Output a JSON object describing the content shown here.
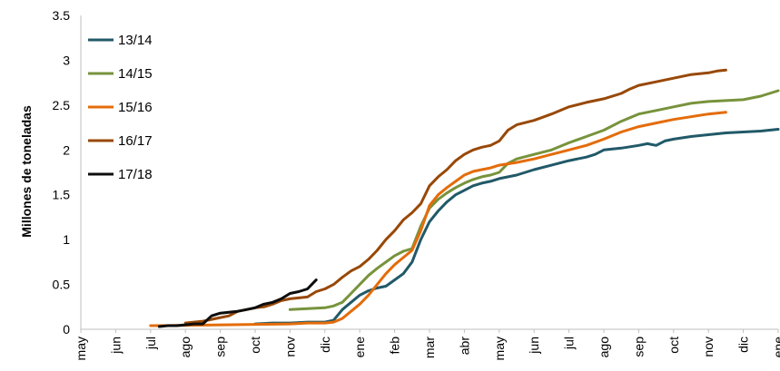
{
  "chart_data": {
    "type": "line",
    "title": "",
    "xlabel": "",
    "ylabel": "Millones de toneladas",
    "ylim": [
      0,
      3.5
    ],
    "yticks": [
      "0",
      "0.5",
      "1",
      "1.5",
      "2",
      "2.5",
      "3",
      "3.5"
    ],
    "categories": [
      "may",
      "jun",
      "jul",
      "ago",
      "sep",
      "oct",
      "nov",
      "dic",
      "ene",
      "feb",
      "mar",
      "abr",
      "may",
      "jun",
      "jul",
      "ago",
      "sep",
      "oct",
      "nov",
      "dic",
      "ene"
    ],
    "x_index_range": [
      0,
      20
    ],
    "grid": false,
    "legend_position": "top-left",
    "series": [
      {
        "name": "13/14",
        "color": "#215968",
        "points": [
          [
            5.0,
            0.06
          ],
          [
            5.5,
            0.07
          ],
          [
            6.0,
            0.07
          ],
          [
            6.5,
            0.08
          ],
          [
            7.0,
            0.08
          ],
          [
            7.25,
            0.1
          ],
          [
            7.5,
            0.22
          ],
          [
            7.75,
            0.3
          ],
          [
            8.0,
            0.38
          ],
          [
            8.25,
            0.43
          ],
          [
            8.5,
            0.46
          ],
          [
            8.75,
            0.48
          ],
          [
            9.0,
            0.55
          ],
          [
            9.25,
            0.62
          ],
          [
            9.5,
            0.75
          ],
          [
            9.75,
            1.0
          ],
          [
            10.0,
            1.2
          ],
          [
            10.25,
            1.32
          ],
          [
            10.5,
            1.42
          ],
          [
            10.75,
            1.5
          ],
          [
            11.0,
            1.55
          ],
          [
            11.25,
            1.6
          ],
          [
            11.5,
            1.63
          ],
          [
            11.75,
            1.65
          ],
          [
            12.0,
            1.68
          ],
          [
            12.5,
            1.72
          ],
          [
            13.0,
            1.78
          ],
          [
            13.5,
            1.83
          ],
          [
            14.0,
            1.88
          ],
          [
            14.5,
            1.92
          ],
          [
            14.75,
            1.95
          ],
          [
            15.0,
            2.0
          ],
          [
            15.5,
            2.02
          ],
          [
            16.0,
            2.05
          ],
          [
            16.25,
            2.07
          ],
          [
            16.5,
            2.05
          ],
          [
            16.75,
            2.1
          ],
          [
            17.0,
            2.12
          ],
          [
            17.5,
            2.15
          ],
          [
            18.0,
            2.17
          ],
          [
            18.5,
            2.19
          ],
          [
            19.0,
            2.2
          ],
          [
            19.5,
            2.21
          ],
          [
            20.0,
            2.23
          ]
        ]
      },
      {
        "name": "14/15",
        "color": "#77933c",
        "points": [
          [
            6.0,
            0.22
          ],
          [
            6.5,
            0.23
          ],
          [
            7.0,
            0.24
          ],
          [
            7.25,
            0.26
          ],
          [
            7.5,
            0.3
          ],
          [
            7.75,
            0.4
          ],
          [
            8.0,
            0.5
          ],
          [
            8.25,
            0.6
          ],
          [
            8.5,
            0.68
          ],
          [
            8.75,
            0.75
          ],
          [
            9.0,
            0.82
          ],
          [
            9.25,
            0.87
          ],
          [
            9.5,
            0.9
          ],
          [
            9.75,
            1.15
          ],
          [
            10.0,
            1.35
          ],
          [
            10.25,
            1.45
          ],
          [
            10.5,
            1.52
          ],
          [
            10.75,
            1.58
          ],
          [
            11.0,
            1.63
          ],
          [
            11.25,
            1.67
          ],
          [
            11.5,
            1.7
          ],
          [
            11.75,
            1.72
          ],
          [
            12.0,
            1.75
          ],
          [
            12.25,
            1.85
          ],
          [
            12.5,
            1.9
          ],
          [
            13.0,
            1.95
          ],
          [
            13.5,
            2.0
          ],
          [
            14.0,
            2.08
          ],
          [
            14.5,
            2.15
          ],
          [
            15.0,
            2.22
          ],
          [
            15.5,
            2.32
          ],
          [
            16.0,
            2.4
          ],
          [
            16.5,
            2.44
          ],
          [
            17.0,
            2.48
          ],
          [
            17.5,
            2.52
          ],
          [
            18.0,
            2.54
          ],
          [
            18.5,
            2.55
          ],
          [
            19.0,
            2.56
          ],
          [
            19.5,
            2.6
          ],
          [
            20.0,
            2.66
          ]
        ]
      },
      {
        "name": "15/16",
        "color": "#e46c0a",
        "points": [
          [
            2.0,
            0.04
          ],
          [
            2.25,
            0.04
          ],
          [
            6.0,
            0.06
          ],
          [
            6.5,
            0.07
          ],
          [
            7.0,
            0.07
          ],
          [
            7.25,
            0.08
          ],
          [
            7.5,
            0.12
          ],
          [
            7.75,
            0.2
          ],
          [
            8.0,
            0.28
          ],
          [
            8.25,
            0.38
          ],
          [
            8.5,
            0.5
          ],
          [
            8.75,
            0.62
          ],
          [
            9.0,
            0.72
          ],
          [
            9.25,
            0.8
          ],
          [
            9.5,
            0.88
          ],
          [
            9.75,
            1.1
          ],
          [
            10.0,
            1.38
          ],
          [
            10.25,
            1.5
          ],
          [
            10.5,
            1.58
          ],
          [
            10.75,
            1.65
          ],
          [
            11.0,
            1.72
          ],
          [
            11.25,
            1.76
          ],
          [
            11.5,
            1.78
          ],
          [
            11.75,
            1.8
          ],
          [
            12.0,
            1.83
          ],
          [
            12.5,
            1.86
          ],
          [
            13.0,
            1.9
          ],
          [
            13.5,
            1.95
          ],
          [
            14.0,
            2.0
          ],
          [
            14.5,
            2.05
          ],
          [
            15.0,
            2.12
          ],
          [
            15.5,
            2.2
          ],
          [
            16.0,
            2.26
          ],
          [
            16.5,
            2.3
          ],
          [
            17.0,
            2.34
          ],
          [
            17.5,
            2.37
          ],
          [
            18.0,
            2.4
          ],
          [
            18.5,
            2.42
          ]
        ]
      },
      {
        "name": "16/17",
        "color": "#984807",
        "points": [
          [
            3.0,
            0.07
          ],
          [
            3.25,
            0.08
          ],
          [
            3.5,
            0.09
          ],
          [
            3.75,
            0.11
          ],
          [
            4.0,
            0.13
          ],
          [
            4.25,
            0.15
          ],
          [
            4.5,
            0.2
          ],
          [
            4.75,
            0.22
          ],
          [
            5.0,
            0.24
          ],
          [
            5.25,
            0.25
          ],
          [
            5.5,
            0.28
          ],
          [
            5.75,
            0.32
          ],
          [
            6.0,
            0.34
          ],
          [
            6.25,
            0.35
          ],
          [
            6.5,
            0.36
          ],
          [
            6.75,
            0.42
          ],
          [
            7.0,
            0.45
          ],
          [
            7.25,
            0.5
          ],
          [
            7.5,
            0.58
          ],
          [
            7.75,
            0.65
          ],
          [
            8.0,
            0.7
          ],
          [
            8.25,
            0.78
          ],
          [
            8.5,
            0.88
          ],
          [
            8.75,
            1.0
          ],
          [
            9.0,
            1.1
          ],
          [
            9.25,
            1.22
          ],
          [
            9.5,
            1.3
          ],
          [
            9.75,
            1.4
          ],
          [
            10.0,
            1.6
          ],
          [
            10.25,
            1.7
          ],
          [
            10.5,
            1.78
          ],
          [
            10.75,
            1.88
          ],
          [
            11.0,
            1.95
          ],
          [
            11.25,
            2.0
          ],
          [
            11.5,
            2.03
          ],
          [
            11.75,
            2.05
          ],
          [
            12.0,
            2.1
          ],
          [
            12.25,
            2.22
          ],
          [
            12.5,
            2.28
          ],
          [
            13.0,
            2.33
          ],
          [
            13.5,
            2.4
          ],
          [
            14.0,
            2.48
          ],
          [
            14.5,
            2.53
          ],
          [
            15.0,
            2.57
          ],
          [
            15.5,
            2.63
          ],
          [
            15.75,
            2.68
          ],
          [
            16.0,
            2.72
          ],
          [
            16.5,
            2.76
          ],
          [
            17.0,
            2.8
          ],
          [
            17.5,
            2.84
          ],
          [
            18.0,
            2.86
          ],
          [
            18.25,
            2.88
          ],
          [
            18.5,
            2.89
          ]
        ]
      },
      {
        "name": "17/18",
        "color": "#0d0d0d",
        "points": [
          [
            2.25,
            0.03
          ],
          [
            2.5,
            0.04
          ],
          [
            2.75,
            0.04
          ],
          [
            3.0,
            0.05
          ],
          [
            3.25,
            0.06
          ],
          [
            3.5,
            0.06
          ],
          [
            3.75,
            0.15
          ],
          [
            4.0,
            0.18
          ],
          [
            4.25,
            0.19
          ],
          [
            4.5,
            0.2
          ],
          [
            4.75,
            0.22
          ],
          [
            5.0,
            0.24
          ],
          [
            5.25,
            0.28
          ],
          [
            5.5,
            0.3
          ],
          [
            5.75,
            0.34
          ],
          [
            6.0,
            0.4
          ],
          [
            6.25,
            0.42
          ],
          [
            6.5,
            0.45
          ],
          [
            6.75,
            0.55
          ]
        ]
      }
    ]
  }
}
